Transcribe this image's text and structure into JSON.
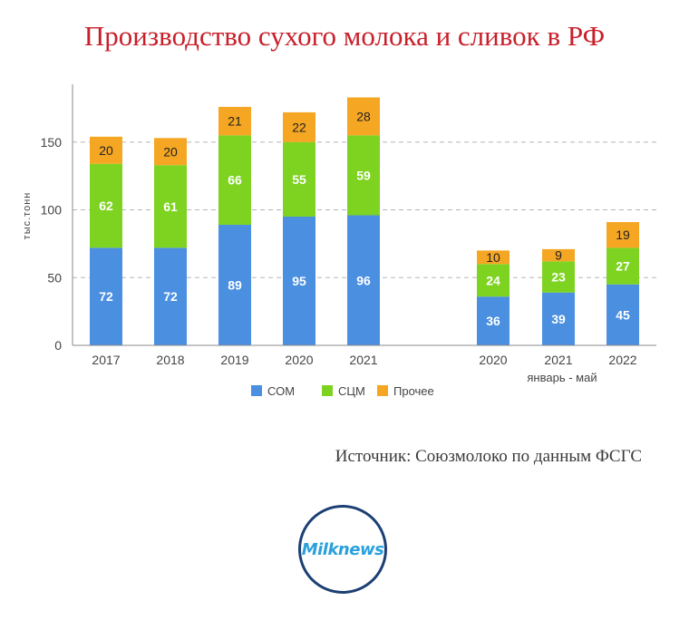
{
  "title": "Производство сухого молока и сливок в РФ",
  "source": "Источник: Союзмолоко по данным ФСГС",
  "logo_text": "Milknews",
  "chart_data": {
    "type": "bar",
    "stacked": true,
    "ylabel": "тыс.тонн",
    "ylim": [
      0,
      190
    ],
    "yticks": [
      0,
      50,
      100,
      150
    ],
    "grid": true,
    "legend": "bottom",
    "categories": [
      "2017",
      "2018",
      "2019",
      "2020",
      "2021",
      "2020",
      "2021",
      "2022"
    ],
    "group_label": "январь - май",
    "series": [
      {
        "name": "СОМ",
        "color": "#4a8fe0",
        "values": [
          72,
          72,
          89,
          95,
          96,
          36,
          39,
          45
        ]
      },
      {
        "name": "СЦМ",
        "color": "#7ed321",
        "values": [
          62,
          61,
          66,
          55,
          59,
          24,
          23,
          27
        ]
      },
      {
        "name": "Прочее",
        "color": "#f5a623",
        "values": [
          20,
          20,
          21,
          22,
          28,
          10,
          9,
          19
        ]
      }
    ]
  }
}
